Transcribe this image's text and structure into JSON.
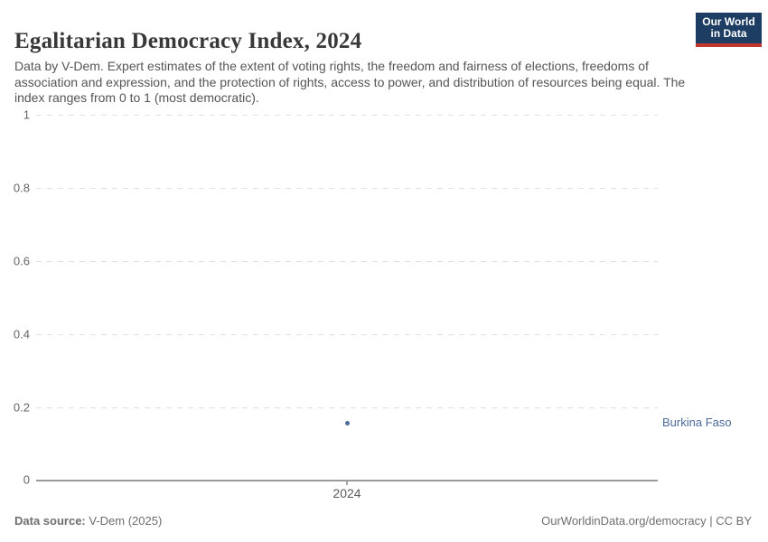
{
  "header": {
    "title": "Egalitarian Democracy Index, 2024",
    "subtitle": "Data by V-Dem. Expert estimates of the extent of voting rights, the freedom and fairness of elections, freedoms of association and expression, and the protection of rights, access to power, and distribution of resources being equal. The index ranges from 0 to 1 (most democratic).",
    "logo": {
      "line1": "Our World",
      "line2": "in Data"
    }
  },
  "chart_data": {
    "type": "scatter",
    "title": "Egalitarian Democracy Index, 2024",
    "x": [
      2024
    ],
    "series": [
      {
        "name": "Burkina Faso",
        "values": [
          0.16
        ]
      }
    ],
    "xlabel": "",
    "ylabel": "",
    "ylim": [
      0,
      1
    ],
    "yticks": [
      0,
      0.2,
      0.4,
      0.6,
      0.8,
      1
    ],
    "xticks": [
      2024
    ],
    "grid": true,
    "legend_position": "right",
    "point_color": "#4c6a9c"
  },
  "axes": {
    "y_ticks": [
      "1",
      "0.8",
      "0.6",
      "0.4",
      "0.2",
      "0"
    ],
    "x_tick": "2024"
  },
  "entity_label": "Burkina Faso",
  "footer": {
    "source_label": "Data source:",
    "source_value": " V-Dem (2025)",
    "right_text": "OurWorldinData.org/democracy | CC BY"
  },
  "colors": {
    "accent_blue": "#4c6a9c",
    "logo_navy": "#1d3d63",
    "logo_red": "#c0372e",
    "title_text": "#383838",
    "subtitle_text": "#555555",
    "tick_text": "#666666",
    "gridline": "#e0e0e0",
    "axis_line": "#9a9a9a",
    "footer_text": "#6e6e6e",
    "background": "#ffffff"
  }
}
